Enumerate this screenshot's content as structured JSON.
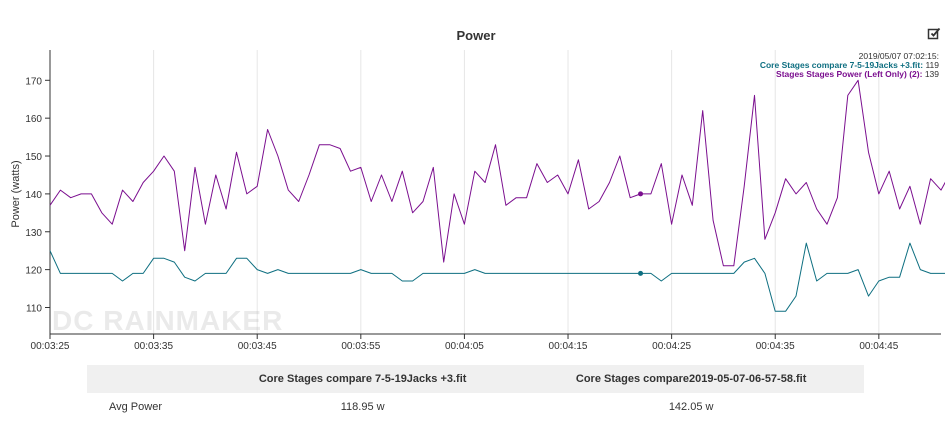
{
  "chart_data": {
    "type": "line",
    "title": "Power",
    "ylabel": "Power (watts)",
    "xlabel": "",
    "ylim": [
      103,
      178
    ],
    "yticks": [
      110,
      120,
      130,
      140,
      150,
      160,
      170
    ],
    "x_start_seconds": 205,
    "x_end_seconds": 291,
    "xticks": [
      "00:03:25",
      "00:03:35",
      "00:03:45",
      "00:03:55",
      "00:04:05",
      "00:04:15",
      "00:04:25",
      "00:04:35",
      "00:04:45"
    ],
    "grid": "vertical",
    "watermark": "DC RAINMAKER",
    "tooltip": {
      "time": "2019/05/07 07:02:15:",
      "x_seconds": 262,
      "rows": [
        {
          "label": "Core Stages compare 7-5-19Jacks +3.fit:",
          "value": "119",
          "color": "#0e6f81"
        },
        {
          "label": "Stages Stages Power (Left Only) (2):",
          "value": "139",
          "color": "#7b0f8f"
        }
      ]
    },
    "series": [
      {
        "name": "Core Stages compare 7-5-19Jacks +3.fit",
        "color": "#0e6f81",
        "values": [
          125,
          119,
          119,
          119,
          119,
          119,
          119,
          117,
          119,
          119,
          123,
          123,
          122,
          118,
          117,
          119,
          119,
          119,
          123,
          123,
          120,
          119,
          120,
          119,
          119,
          119,
          119,
          119,
          119,
          119,
          120,
          119,
          119,
          119,
          117,
          117,
          119,
          119,
          119,
          119,
          119,
          120,
          119,
          119,
          119,
          119,
          119,
          119,
          119,
          119,
          119,
          119,
          119,
          119,
          119,
          119,
          119,
          119,
          119,
          117,
          119,
          119,
          119,
          119,
          119,
          119,
          119,
          122,
          123,
          119,
          109,
          109,
          113,
          127,
          117,
          119,
          119,
          119,
          120,
          113,
          117,
          118,
          118,
          127,
          120,
          119,
          119,
          119,
          119,
          116,
          119,
          119,
          117
        ]
      },
      {
        "name": "Stages Stages Power (Left Only) (2)",
        "color": "#7b0f8f",
        "values": [
          137,
          141,
          139,
          140,
          140,
          135,
          132,
          141,
          138,
          143,
          146,
          150,
          146,
          125,
          147,
          132,
          145,
          136,
          151,
          140,
          142,
          157,
          150,
          141,
          138,
          145,
          153,
          153,
          152,
          146,
          147,
          138,
          145,
          138,
          146,
          135,
          138,
          147,
          122,
          140,
          132,
          146,
          143,
          153,
          137,
          139,
          139,
          148,
          143,
          145,
          140,
          149,
          136,
          138,
          143,
          150,
          139,
          140,
          140,
          148,
          132,
          145,
          137,
          162,
          133,
          121,
          121,
          142,
          166,
          128,
          135,
          144,
          140,
          143,
          136,
          132,
          139,
          166,
          170,
          151,
          140,
          146,
          136,
          142,
          132,
          144,
          141,
          146
        ]
      }
    ]
  },
  "table": {
    "headers": [
      "",
      "Core Stages compare 7-5-19Jacks +3.fit",
      "Core Stages compare2019-05-07-06-57-58.fit"
    ],
    "rows": [
      {
        "label": "Avg Power",
        "values": [
          "118.95 w",
          "142.05 w"
        ]
      }
    ]
  },
  "icons": {
    "edit": "edit-checkbox-icon"
  }
}
